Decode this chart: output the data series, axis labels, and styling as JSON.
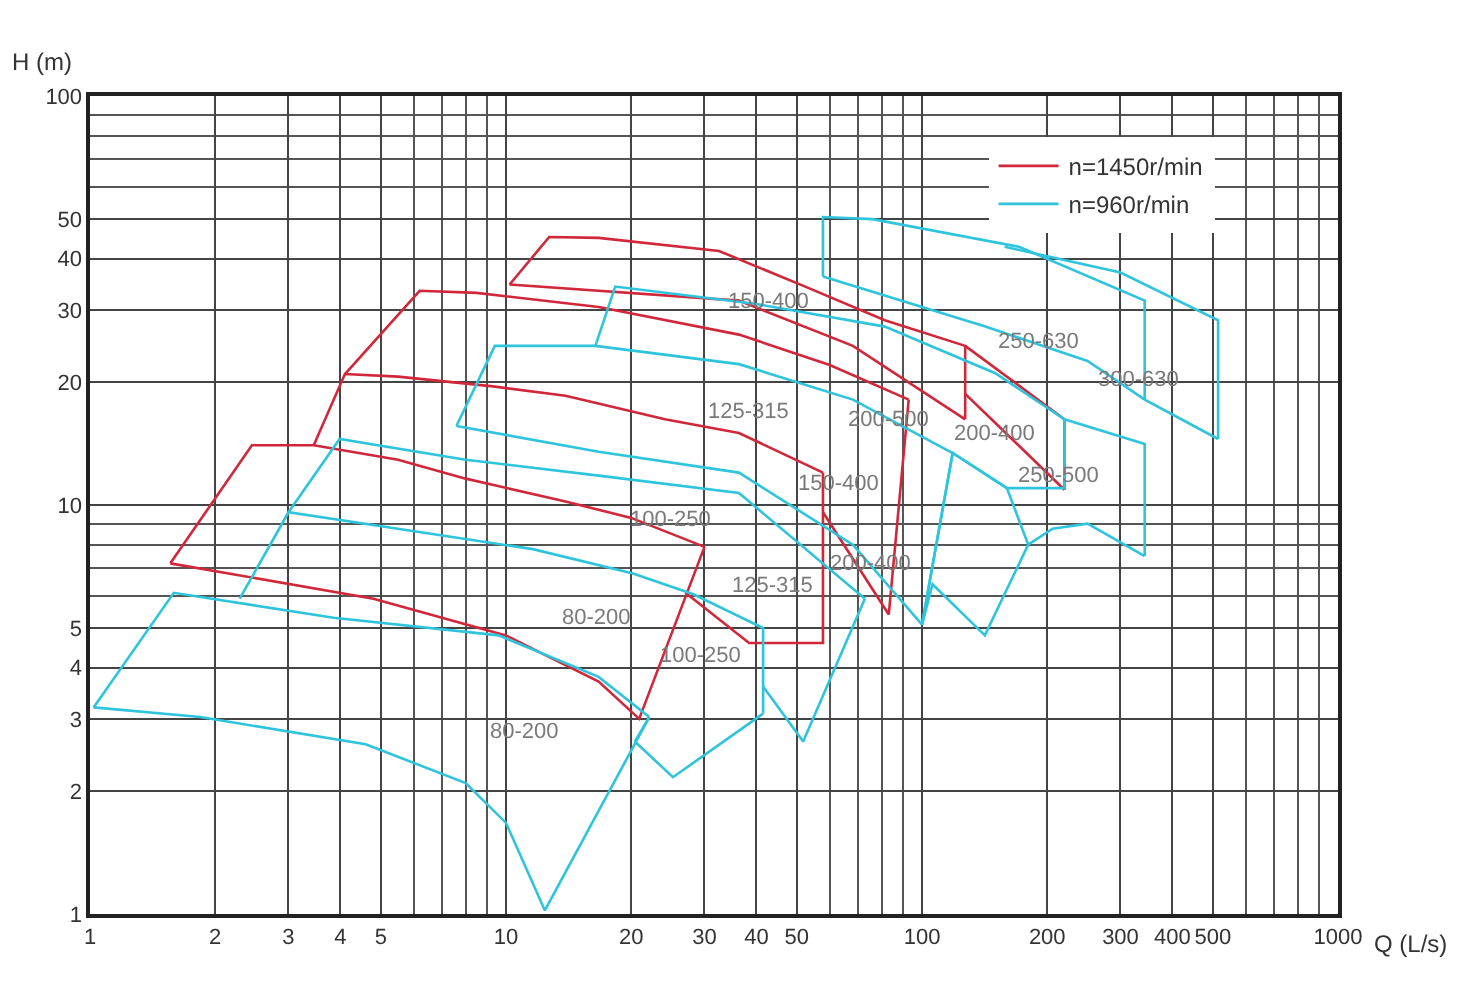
{
  "chart_data": {
    "type": "line",
    "xlabel": "Q (L/s)",
    "ylabel": "H (m)",
    "log": "xy",
    "xlim": [
      1,
      1000
    ],
    "ylim": [
      1,
      100
    ],
    "xticks": [
      1,
      2,
      3,
      4,
      5,
      10,
      20,
      30,
      40,
      50,
      100,
      200,
      300,
      400,
      500,
      1000
    ],
    "yticks": [
      1,
      2,
      3,
      4,
      5,
      10,
      20,
      30,
      40,
      50,
      100
    ],
    "grid": true,
    "legend": "top right",
    "marker": "none",
    "line_style": "solid",
    "series": [
      {
        "name": "n=1450r/min",
        "color": "#d0283a",
        "x": [
          1.56,
          2.45,
          3.45,
          5.5,
          8,
          13.9,
          20,
          30
        ],
        "values": [
          7.2,
          14,
          14,
          12.9,
          11.6,
          10.2,
          9.3,
          7.9
        ]
      },
      {
        "color": "#d0283a",
        "x": [
          1.56,
          4.8,
          10,
          12.4,
          16.7,
          20.9,
          30
        ],
        "values": [
          7.2,
          5.9,
          4.8,
          4.3,
          3.7,
          3.0,
          7.9
        ]
      },
      {
        "color": "#d0283a",
        "x": [
          3.45,
          4.1,
          5.5,
          9.3,
          13.9,
          24.1,
          36.3,
          57.8
        ],
        "values": [
          14,
          20.9,
          20.6,
          19.5,
          18.5,
          16.2,
          15,
          12
        ]
      },
      {
        "color": "#d0283a",
        "x": [
          27,
          38.4,
          57.8,
          57.8
        ],
        "values": [
          6.1,
          4.6,
          4.6,
          12
        ]
      },
      {
        "color": "#d0283a",
        "x": [
          4.1,
          6.2,
          8.5,
          16.7,
          36.3,
          60,
          92.9
        ],
        "values": [
          20.9,
          33.4,
          33,
          30.5,
          26.1,
          22,
          18.1
        ]
      },
      {
        "color": "#d0283a",
        "x": [
          57.8,
          83.2,
          92.9
        ],
        "values": [
          9.6,
          5.4,
          18.1
        ]
      },
      {
        "color": "#d0283a",
        "x": [
          10.2,
          12.7,
          16.7,
          32.5,
          52.4,
          81.4,
          127,
          127
        ],
        "values": [
          34.6,
          45.2,
          45,
          41.8,
          34.2,
          28.3,
          24.5,
          16.2
        ]
      },
      {
        "color": "#d0283a",
        "x": [
          10.2,
          36.3,
          68.2,
          127
        ],
        "values": [
          34.6,
          31.6,
          24.5,
          16.2
        ]
      },
      {
        "color": "#d0283a",
        "x": [
          127,
          220,
          220
        ],
        "values": [
          24.5,
          16.2,
          10.9
        ]
      },
      {
        "color": "#d0283a",
        "x": [
          127,
          220
        ],
        "values": [
          18.7,
          10.9
        ]
      },
      {
        "name": "n=960r/min",
        "color": "#2ec4dc",
        "x": [
          1.02,
          1.59,
          3.85,
          9.6,
          16.7,
          22.1
        ],
        "values": [
          3.2,
          6.1,
          5.3,
          4.8,
          3.8,
          3.03
        ]
      },
      {
        "color": "#2ec4dc",
        "x": [
          1.02,
          1.84,
          4.6,
          8,
          10,
          12.4,
          22.1
        ],
        "values": [
          3.2,
          3.03,
          2.6,
          2.09,
          1.67,
          1.02,
          3.03
        ]
      },
      {
        "color": "#2ec4dc",
        "x": [
          2.29,
          3.0,
          11.6,
          20.2,
          28.2,
          41.5,
          41.5
        ],
        "values": [
          5.9,
          9.6,
          7.8,
          6.8,
          6.05,
          5.0,
          3.09
        ]
      },
      {
        "color": "#2ec4dc",
        "x": [
          20.4,
          25.2,
          41.5
        ],
        "values": [
          2.64,
          2.16,
          3.09
        ]
      },
      {
        "color": "#2ec4dc",
        "x": [
          20.4,
          22.1
        ],
        "values": [
          2.64,
          3.03
        ]
      },
      {
        "color": "#2ec4dc",
        "x": [
          3.0,
          3.98,
          8,
          16.7,
          36.3,
          72.9
        ],
        "values": [
          9.6,
          14.5,
          12.9,
          11.8,
          10.7,
          5.9
        ]
      },
      {
        "color": "#2ec4dc",
        "x": [
          41.5,
          51.8,
          72.9
        ],
        "values": [
          3.6,
          2.64,
          5.9
        ]
      },
      {
        "color": "#2ec4dc",
        "x": [
          7.6,
          9.4,
          16.4,
          36.3,
          68.2,
          118.5,
          160,
          220,
          220
        ],
        "values": [
          15.6,
          24.5,
          24.5,
          22.1,
          18.1,
          13.4,
          11,
          11,
          16.2
        ]
      },
      {
        "color": "#2ec4dc",
        "x": [
          7.6,
          16.7,
          36.3,
          68.2,
          100,
          118.5
        ],
        "values": [
          15.6,
          13.5,
          12,
          8,
          5.1,
          13.4
        ]
      },
      {
        "color": "#2ec4dc",
        "x": [
          100,
          118.5,
          160,
          180
        ],
        "values": [
          5.1,
          13.4,
          11,
          8.0
        ]
      },
      {
        "color": "#2ec4dc",
        "x": [
          100,
          106,
          141.6,
          180
        ],
        "values": [
          5.1,
          6.4,
          4.8,
          8.0
        ]
      },
      {
        "color": "#2ec4dc",
        "x": [
          16.4,
          18.3,
          40,
          81.4,
          150,
          220,
          343,
          343
        ],
        "values": [
          24.5,
          34.2,
          31,
          27.3,
          21,
          16.2,
          14.1,
          7.5
        ]
      },
      {
        "color": "#2ec4dc",
        "x": [
          180,
          206,
          250,
          343
        ],
        "values": [
          8.0,
          8.75,
          9,
          7.5
        ]
      },
      {
        "color": "#2ec4dc",
        "x": [
          57.8,
          57.8,
          76,
          171,
          343,
          343
        ],
        "values": [
          36.2,
          50.6,
          50,
          42.8,
          31.6,
          18.1
        ]
      },
      {
        "color": "#2ec4dc",
        "x": [
          57.8,
          142,
          250,
          343,
          515
        ],
        "values": [
          36.2,
          27.3,
          22.5,
          18.1,
          14.5
        ]
      },
      {
        "color": "#2ec4dc",
        "x": [
          158,
          300,
          515,
          515
        ],
        "values": [
          42.8,
          37,
          28.3,
          14.5
        ]
      }
    ],
    "annotations": [
      "80-200",
      "100-250",
      "125-315",
      "150-400",
      "200-400",
      "80-200",
      "100-250",
      "125-315",
      "150-400",
      "200-400",
      "200-500",
      "250-500",
      "250-630",
      "300-630"
    ]
  }
}
